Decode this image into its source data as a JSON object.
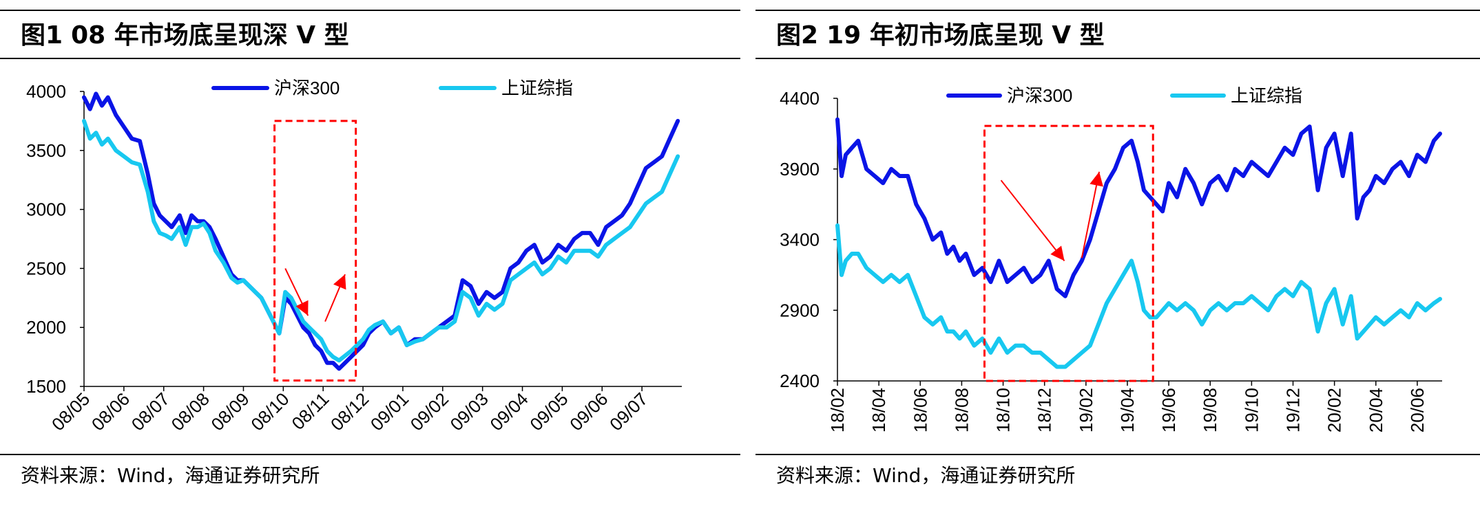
{
  "figures": [
    {
      "label": "图1",
      "title": "08 年市场底呈现深 V 型",
      "source": "资料来源：Wind，海通证券研究所"
    },
    {
      "label": "图2",
      "title": "19 年初市场底呈现 V 型",
      "source": "资料来源：Wind，海通证券研究所"
    }
  ],
  "chart_data": [
    {
      "type": "line",
      "title": "08 年市场底呈现深 V 型",
      "xlabel": "",
      "ylabel": "",
      "ylim": [
        1500,
        4000
      ],
      "yticks": [
        1500,
        2000,
        2500,
        3000,
        3500,
        4000
      ],
      "xticks": [
        "08/05",
        "08/06",
        "08/07",
        "08/08",
        "08/09",
        "08/10",
        "08/11",
        "08/12",
        "09/01",
        "09/02",
        "09/03",
        "09/04",
        "09/05",
        "09/06",
        "09/07"
      ],
      "xrange": [
        0,
        15
      ],
      "grid": false,
      "legend": "top",
      "highlight": {
        "x": [
          4.78,
          6.82
        ],
        "y": [
          1550,
          3750
        ],
        "color": "#ff0000",
        "style": "dashed"
      },
      "arrows": [
        {
          "from": [
            5.05,
            2500
          ],
          "to": [
            5.62,
            2100
          ],
          "direction": "down"
        },
        {
          "from": [
            6.05,
            2050
          ],
          "to": [
            6.55,
            2450
          ],
          "direction": "up"
        }
      ],
      "series": [
        {
          "name": "沪深300",
          "color": "#0a14e6",
          "x": [
            0,
            0.15,
            0.3,
            0.45,
            0.6,
            0.8,
            1.0,
            1.2,
            1.4,
            1.6,
            1.75,
            1.9,
            2.05,
            2.2,
            2.4,
            2.55,
            2.7,
            2.85,
            3.0,
            3.15,
            3.3,
            3.5,
            3.7,
            3.85,
            4.0,
            4.15,
            4.3,
            4.45,
            4.6,
            4.75,
            4.9,
            5.05,
            5.2,
            5.35,
            5.5,
            5.65,
            5.8,
            5.95,
            6.1,
            6.25,
            6.4,
            6.55,
            6.7,
            6.85,
            7.0,
            7.15,
            7.3,
            7.5,
            7.7,
            7.9,
            8.1,
            8.3,
            8.5,
            8.7,
            8.9,
            9.1,
            9.3,
            9.5,
            9.7,
            9.9,
            10.1,
            10.3,
            10.5,
            10.7,
            10.9,
            11.1,
            11.3,
            11.5,
            11.7,
            11.9,
            12.1,
            12.3,
            12.5,
            12.7,
            12.9,
            13.1,
            13.3,
            13.5,
            13.7,
            13.9,
            14.1,
            14.3,
            14.5,
            14.7,
            14.9
          ],
          "values": [
            3950,
            3850,
            3980,
            3880,
            3950,
            3800,
            3700,
            3600,
            3580,
            3300,
            3050,
            2950,
            2900,
            2850,
            2950,
            2800,
            2950,
            2900,
            2900,
            2850,
            2750,
            2600,
            2450,
            2400,
            2400,
            2350,
            2300,
            2250,
            2150,
            2050,
            1950,
            2250,
            2200,
            2100,
            2000,
            1950,
            1850,
            1800,
            1700,
            1700,
            1650,
            1700,
            1750,
            1800,
            1850,
            1950,
            2000,
            2050,
            1950,
            2000,
            1850,
            1900,
            1900,
            1950,
            2000,
            2050,
            2100,
            2400,
            2350,
            2200,
            2300,
            2250,
            2300,
            2500,
            2550,
            2650,
            2700,
            2550,
            2600,
            2700,
            2650,
            2750,
            2800,
            2800,
            2700,
            2850,
            2900,
            2950,
            3050,
            3200,
            3350,
            3400,
            3450,
            3600,
            3750
          ]
        },
        {
          "name": "上证综指",
          "color": "#18c8f0",
          "x": [
            0,
            0.15,
            0.3,
            0.45,
            0.6,
            0.8,
            1.0,
            1.2,
            1.4,
            1.6,
            1.75,
            1.9,
            2.05,
            2.2,
            2.4,
            2.55,
            2.7,
            2.85,
            3.0,
            3.15,
            3.3,
            3.5,
            3.7,
            3.85,
            4.0,
            4.15,
            4.3,
            4.45,
            4.6,
            4.75,
            4.9,
            5.05,
            5.2,
            5.35,
            5.5,
            5.65,
            5.8,
            5.95,
            6.1,
            6.25,
            6.4,
            6.55,
            6.7,
            6.85,
            7.0,
            7.15,
            7.3,
            7.5,
            7.7,
            7.9,
            8.1,
            8.3,
            8.5,
            8.7,
            8.9,
            9.1,
            9.3,
            9.5,
            9.7,
            9.9,
            10.1,
            10.3,
            10.5,
            10.7,
            10.9,
            11.1,
            11.3,
            11.5,
            11.7,
            11.9,
            12.1,
            12.3,
            12.5,
            12.7,
            12.9,
            13.1,
            13.3,
            13.5,
            13.7,
            13.9,
            14.1,
            14.3,
            14.5,
            14.7,
            14.9
          ],
          "values": [
            3750,
            3600,
            3650,
            3550,
            3600,
            3500,
            3450,
            3400,
            3380,
            3150,
            2900,
            2800,
            2780,
            2750,
            2850,
            2700,
            2850,
            2850,
            2880,
            2800,
            2650,
            2550,
            2420,
            2380,
            2400,
            2350,
            2300,
            2250,
            2150,
            2050,
            1950,
            2300,
            2250,
            2150,
            2050,
            2000,
            1950,
            1900,
            1800,
            1750,
            1720,
            1760,
            1800,
            1850,
            1900,
            1980,
            2020,
            2050,
            1950,
            2000,
            1850,
            1880,
            1900,
            1950,
            2000,
            2000,
            2050,
            2300,
            2250,
            2100,
            2200,
            2150,
            2200,
            2400,
            2450,
            2500,
            2550,
            2450,
            2500,
            2600,
            2550,
            2650,
            2650,
            2650,
            2600,
            2700,
            2750,
            2800,
            2850,
            2950,
            3050,
            3100,
            3150,
            3300,
            3450
          ]
        }
      ]
    },
    {
      "type": "line",
      "title": "19 年初市场底呈现 V 型",
      "xlabel": "",
      "ylabel": "",
      "ylim": [
        2400,
        4400
      ],
      "yticks": [
        2400,
        2900,
        3400,
        3900,
        4400
      ],
      "xticks": [
        "18/02",
        "18/04",
        "18/06",
        "18/08",
        "18/10",
        "18/12",
        "19/02",
        "19/04",
        "19/06",
        "19/08",
        "19/10",
        "19/12",
        "20/02",
        "20/04",
        "20/06"
      ],
      "xrange": [
        0,
        14.6
      ],
      "grid": false,
      "legend": "top",
      "highlight": {
        "x": [
          3.55,
          7.62
        ],
        "y": [
          2400,
          4205
        ],
        "color": "#ff0000",
        "style": "dashed"
      },
      "arrows": [
        {
          "from": [
            3.95,
            3820
          ],
          "to": [
            5.48,
            3250
          ],
          "direction": "down"
        },
        {
          "from": [
            5.9,
            3270
          ],
          "to": [
            6.32,
            3880
          ],
          "direction": "up"
        }
      ],
      "series": [
        {
          "name": "沪深300",
          "color": "#0a14e6",
          "x": [
            0,
            0.1,
            0.2,
            0.35,
            0.5,
            0.7,
            0.9,
            1.1,
            1.3,
            1.5,
            1.7,
            1.9,
            2.1,
            2.3,
            2.5,
            2.65,
            2.8,
            2.95,
            3.1,
            3.3,
            3.5,
            3.7,
            3.9,
            4.1,
            4.3,
            4.5,
            4.7,
            4.9,
            5.1,
            5.3,
            5.5,
            5.7,
            5.9,
            6.1,
            6.3,
            6.5,
            6.7,
            6.9,
            7.1,
            7.25,
            7.4,
            7.55,
            7.7,
            7.85,
            8.0,
            8.2,
            8.4,
            8.6,
            8.8,
            9.0,
            9.2,
            9.4,
            9.6,
            9.8,
            10.0,
            10.2,
            10.4,
            10.6,
            10.8,
            11.0,
            11.2,
            11.4,
            11.6,
            11.8,
            12.0,
            12.2,
            12.4,
            12.55,
            12.7,
            12.85,
            13.0,
            13.2,
            13.4,
            13.6,
            13.8,
            14.0,
            14.2,
            14.4,
            14.55
          ],
          "values": [
            4250,
            3850,
            4000,
            4050,
            4100,
            3900,
            3850,
            3800,
            3900,
            3850,
            3850,
            3650,
            3550,
            3400,
            3450,
            3300,
            3350,
            3250,
            3300,
            3150,
            3200,
            3100,
            3250,
            3100,
            3150,
            3200,
            3100,
            3150,
            3250,
            3050,
            3000,
            3150,
            3250,
            3400,
            3600,
            3800,
            3900,
            4050,
            4100,
            3950,
            3750,
            3700,
            3650,
            3600,
            3800,
            3700,
            3900,
            3800,
            3650,
            3800,
            3850,
            3750,
            3900,
            3850,
            3950,
            3900,
            3850,
            3950,
            4050,
            4000,
            4150,
            4200,
            3750,
            4050,
            4150,
            3850,
            4150,
            3550,
            3700,
            3750,
            3850,
            3800,
            3900,
            3950,
            3850,
            4000,
            3950,
            4100,
            4150
          ]
        },
        {
          "name": "上证综指",
          "color": "#18c8f0",
          "x": [
            0,
            0.1,
            0.2,
            0.35,
            0.5,
            0.7,
            0.9,
            1.1,
            1.3,
            1.5,
            1.7,
            1.9,
            2.1,
            2.3,
            2.5,
            2.65,
            2.8,
            2.95,
            3.1,
            3.3,
            3.5,
            3.7,
            3.9,
            4.1,
            4.3,
            4.5,
            4.7,
            4.9,
            5.1,
            5.3,
            5.5,
            5.7,
            5.9,
            6.1,
            6.3,
            6.5,
            6.7,
            6.9,
            7.1,
            7.25,
            7.4,
            7.55,
            7.7,
            7.85,
            8.0,
            8.2,
            8.4,
            8.6,
            8.8,
            9.0,
            9.2,
            9.4,
            9.6,
            9.8,
            10.0,
            10.2,
            10.4,
            10.6,
            10.8,
            11.0,
            11.2,
            11.4,
            11.6,
            11.8,
            12.0,
            12.2,
            12.4,
            12.55,
            12.7,
            12.85,
            13.0,
            13.2,
            13.4,
            13.6,
            13.8,
            14.0,
            14.2,
            14.4,
            14.55
          ],
          "values": [
            3500,
            3150,
            3250,
            3300,
            3300,
            3200,
            3150,
            3100,
            3150,
            3100,
            3150,
            3000,
            2850,
            2800,
            2850,
            2750,
            2750,
            2700,
            2750,
            2650,
            2700,
            2600,
            2700,
            2600,
            2650,
            2650,
            2600,
            2600,
            2550,
            2500,
            2500,
            2550,
            2600,
            2650,
            2800,
            2950,
            3050,
            3150,
            3250,
            3100,
            2900,
            2850,
            2850,
            2900,
            2950,
            2900,
            2950,
            2900,
            2800,
            2900,
            2950,
            2900,
            2950,
            2950,
            3000,
            2950,
            2900,
            3000,
            3050,
            3000,
            3100,
            3050,
            2750,
            2950,
            3050,
            2800,
            3000,
            2700,
            2750,
            2800,
            2850,
            2800,
            2850,
            2900,
            2850,
            2950,
            2900,
            2950,
            2980
          ]
        }
      ]
    }
  ]
}
